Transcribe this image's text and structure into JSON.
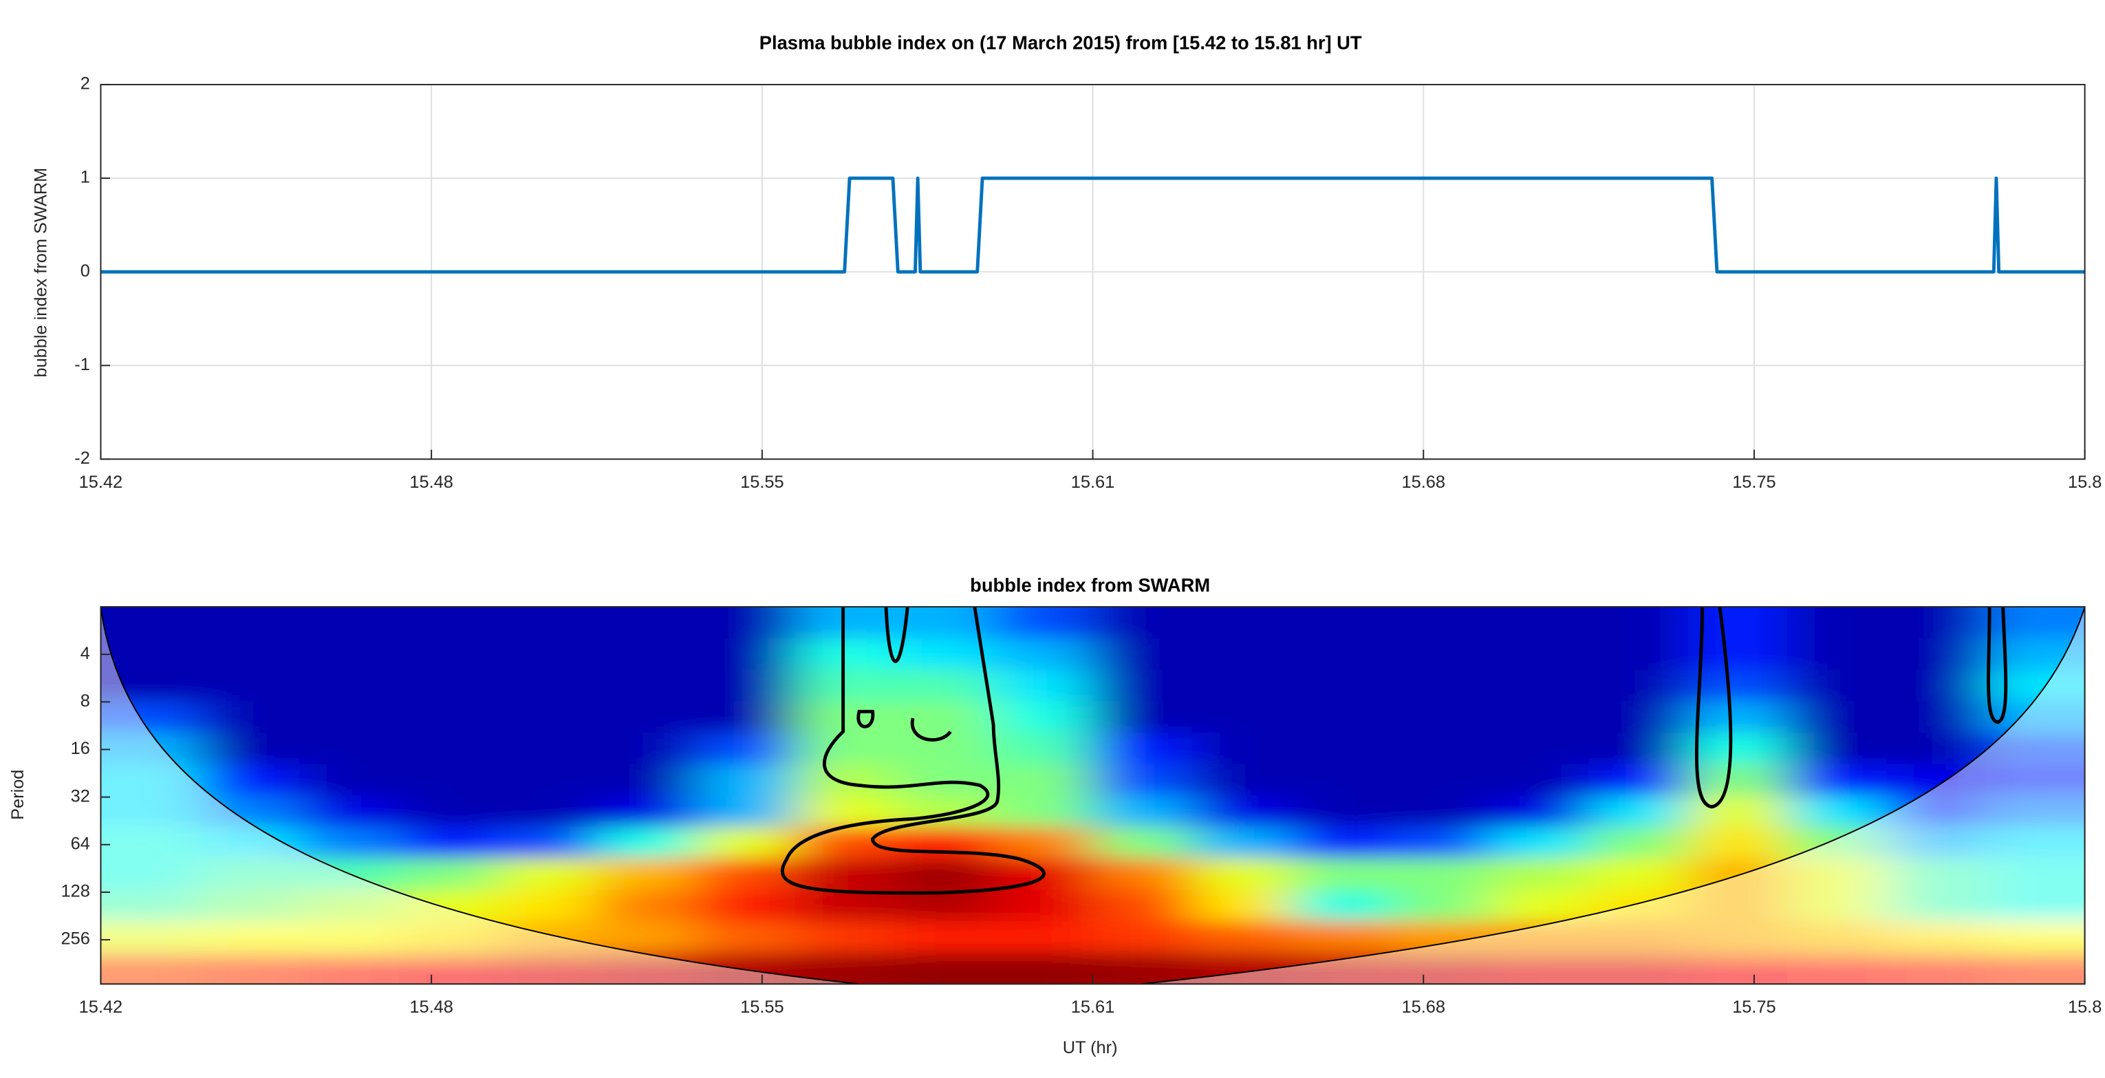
{
  "chart_data": [
    {
      "type": "line",
      "title": "Plasma bubble index on (17 March 2015) from [15.42 to 15.81 hr] UT",
      "ylabel": "bubble index from SWARM",
      "x": [
        15.42,
        15.5662,
        15.5672,
        15.5757,
        15.5767,
        15.5801,
        15.5806,
        15.5811,
        15.5923,
        15.5933,
        15.7367,
        15.7377,
        15.7921,
        15.7926,
        15.7931,
        15.81
      ],
      "values": [
        0,
        0,
        1,
        1,
        0,
        0,
        1,
        0,
        0,
        1,
        1,
        0,
        0,
        1,
        0,
        0
      ],
      "color": "#0072bd",
      "xlim": [
        15.42,
        15.81
      ],
      "xticks": [
        15.42,
        {
          "value": 15.485,
          "label": "15.48"
        },
        15.55,
        {
          "value": 15.615,
          "label": "15.61"
        },
        15.68,
        {
          "value": 15.745,
          "label": "15.75"
        },
        {
          "value": 15.81,
          "label": "15.8"
        }
      ],
      "ylim": [
        -2,
        2
      ],
      "yticks": [
        -2,
        -1,
        0,
        1,
        2
      ],
      "grid": true
    },
    {
      "type": "heatmap",
      "title": "bubble index from SWARM",
      "xlabel": "UT (hr)",
      "ylabel": "Period",
      "colormap": "jet",
      "log_scale": true,
      "y_reversed": true,
      "xlim": [
        15.42,
        15.81
      ],
      "xticks": [
        15.42,
        {
          "value": 15.485,
          "label": "15.48"
        },
        15.55,
        {
          "value": 15.615,
          "label": "15.61"
        },
        15.68,
        {
          "value": 15.745,
          "label": "15.75"
        },
        {
          "value": 15.81,
          "label": "15.8"
        }
      ],
      "ylim": [
        2,
        488
      ],
      "yticks": [
        4,
        8,
        16,
        32,
        64,
        128,
        256
      ],
      "zlim": [
        0,
        1
      ],
      "z": [
        [
          0.05,
          0.05,
          0.05,
          0.05,
          0.05,
          0.05,
          0.05,
          0.3,
          0.3,
          0.2,
          0.05,
          0.05,
          0.05,
          0.05,
          0.05,
          0.05,
          0.15,
          0.05,
          0.05,
          0.25
        ],
        [
          0.05,
          0.05,
          0.05,
          0.05,
          0.05,
          0.05,
          0.05,
          0.4,
          0.35,
          0.3,
          0.05,
          0.05,
          0.05,
          0.05,
          0.05,
          0.05,
          0.15,
          0.05,
          0.05,
          0.3
        ],
        [
          0.05,
          0.05,
          0.05,
          0.05,
          0.05,
          0.05,
          0.05,
          0.45,
          0.45,
          0.35,
          0.05,
          0.05,
          0.05,
          0.05,
          0.05,
          0.05,
          0.2,
          0.05,
          0.05,
          0.35
        ],
        [
          0.2,
          0.05,
          0.05,
          0.05,
          0.05,
          0.05,
          0.05,
          0.5,
          0.5,
          0.4,
          0.05,
          0.05,
          0.05,
          0.05,
          0.05,
          0.05,
          0.3,
          0.05,
          0.05,
          0.3
        ],
        [
          0.3,
          0.05,
          0.05,
          0.05,
          0.05,
          0.05,
          0.2,
          0.5,
          0.5,
          0.45,
          0.15,
          0.05,
          0.05,
          0.05,
          0.05,
          0.05,
          0.4,
          0.05,
          0.05,
          0.2
        ],
        [
          0.35,
          0.15,
          0.05,
          0.05,
          0.05,
          0.05,
          0.3,
          0.55,
          0.5,
          0.5,
          0.2,
          0.05,
          0.05,
          0.05,
          0.05,
          0.15,
          0.5,
          0.15,
          0.1,
          0.15
        ],
        [
          0.35,
          0.25,
          0.1,
          0.05,
          0.05,
          0.1,
          0.3,
          0.6,
          0.55,
          0.5,
          0.3,
          0.1,
          0.05,
          0.05,
          0.1,
          0.35,
          0.6,
          0.35,
          0.15,
          0.25
        ],
        [
          0.4,
          0.35,
          0.25,
          0.15,
          0.2,
          0.4,
          0.6,
          0.8,
          0.85,
          0.75,
          0.5,
          0.3,
          0.15,
          0.2,
          0.35,
          0.5,
          0.65,
          0.5,
          0.3,
          0.35
        ],
        [
          0.4,
          0.45,
          0.45,
          0.5,
          0.6,
          0.7,
          0.8,
          0.93,
          0.97,
          0.9,
          0.75,
          0.6,
          0.5,
          0.5,
          0.55,
          0.6,
          0.7,
          0.6,
          0.45,
          0.4
        ],
        [
          0.45,
          0.5,
          0.55,
          0.6,
          0.65,
          0.75,
          0.85,
          0.93,
          0.95,
          0.9,
          0.8,
          0.65,
          0.4,
          0.5,
          0.6,
          0.65,
          0.7,
          0.6,
          0.45,
          0.4
        ],
        [
          0.6,
          0.62,
          0.62,
          0.65,
          0.7,
          0.72,
          0.78,
          0.82,
          0.85,
          0.85,
          0.82,
          0.78,
          0.75,
          0.72,
          0.72,
          0.72,
          0.7,
          0.68,
          0.65,
          0.62
        ],
        [
          0.8,
          0.82,
          0.85,
          0.88,
          0.9,
          0.92,
          0.95,
          0.97,
          0.98,
          0.98,
          0.97,
          0.95,
          0.93,
          0.92,
          0.9,
          0.9,
          0.88,
          0.86,
          0.85,
          0.82
        ]
      ]
    }
  ]
}
